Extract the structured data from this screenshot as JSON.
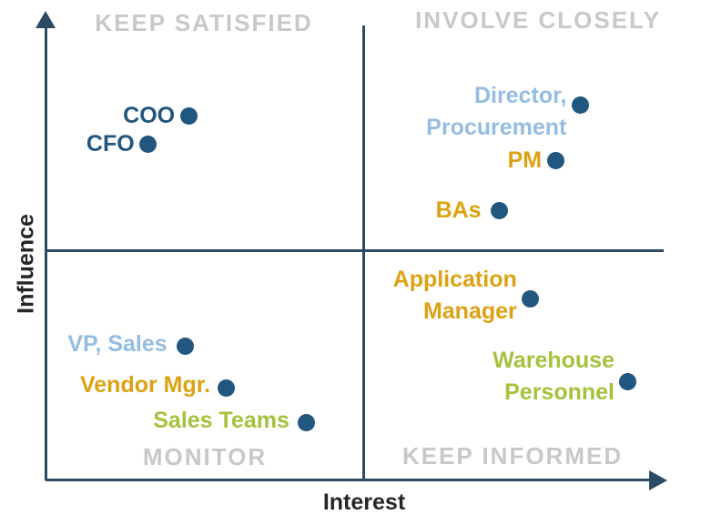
{
  "palette": {
    "navy": "#21577f",
    "line": "#2b4a63",
    "lightblue": "#94bde1",
    "gold": "#dca211",
    "green": "#a5c23d",
    "gray": "#c8c8c8",
    "ink": "#262626",
    "background": "#ffffff"
  },
  "chart_data": {
    "type": "scatter",
    "title": "",
    "xlabel": "Interest",
    "ylabel": "Influence",
    "xlim": [
      0,
      100
    ],
    "ylim": [
      0,
      100
    ],
    "grid": false,
    "legend": "none",
    "quadrants": [
      {
        "id": "keep-satisfied",
        "label": "KEEP SATISFIED",
        "position": "top-left"
      },
      {
        "id": "involve-closely",
        "label": "INVOLVE CLOSELY",
        "position": "top-right"
      },
      {
        "id": "monitor",
        "label": "MONITOR",
        "position": "bottom-left"
      },
      {
        "id": "keep-informed",
        "label": "KEEP INFORMED",
        "position": "bottom-right"
      }
    ],
    "points": [
      {
        "name": "COO",
        "lines": [
          "COO"
        ],
        "interest": 23,
        "influence": 78,
        "color_role": "navy",
        "label_dy": 0
      },
      {
        "name": "CFO",
        "lines": [
          "CFO"
        ],
        "interest": 16.5,
        "influence": 72,
        "color_role": "navy",
        "label_dy": 0
      },
      {
        "name": "Director, Procurement",
        "lines": [
          "Director,",
          "Procurement"
        ],
        "interest": 86,
        "influence": 80.5,
        "color_role": "lightblue",
        "label_dy": 8
      },
      {
        "name": "PM",
        "lines": [
          "PM"
        ],
        "interest": 82,
        "influence": 68.6,
        "color_role": "gold",
        "label_dy": 0
      },
      {
        "name": "BAs",
        "lines": [
          "BAs"
        ],
        "interest": 73,
        "influence": 57.7,
        "color_role": "gold",
        "label_dy": 0,
        "label_gap": 20
      },
      {
        "name": "Application Manager",
        "lines": [
          "Application",
          "Manager"
        ],
        "interest": 78,
        "influence": 38.8,
        "color_role": "gold",
        "label_dy": -4
      },
      {
        "name": "VP, Sales",
        "lines": [
          "VP, Sales"
        ],
        "interest": 22.5,
        "influence": 28.8,
        "color_role": "lightblue",
        "label_dy": -2,
        "label_gap": 20
      },
      {
        "name": "Vendor Mgr.",
        "lines": [
          "Vendor Mgr."
        ],
        "interest": 29,
        "influence": 19.7,
        "color_role": "gold",
        "label_dy": -3,
        "label_gap": 17
      },
      {
        "name": "Sales Teams",
        "lines": [
          "Sales Teams"
        ],
        "interest": 42,
        "influence": 12.3,
        "color_role": "green",
        "label_dy": -2,
        "label_gap": 19
      },
      {
        "name": "Warehouse Personnel",
        "lines": [
          "Warehouse",
          "Personnel"
        ],
        "interest": 93.7,
        "influence": 21.1,
        "color_role": "green",
        "label_dy": -6
      }
    ]
  }
}
